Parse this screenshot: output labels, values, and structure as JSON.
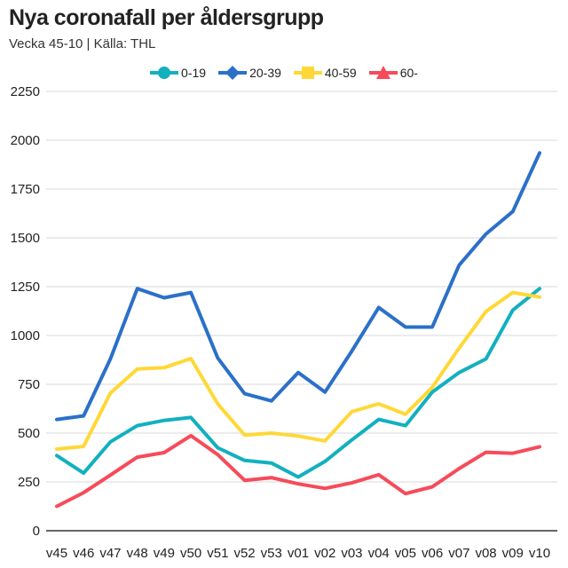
{
  "header": {
    "title": "Nya coronafall per åldersgrupp",
    "subtitle": "Vecka 45-10 | Källa: THL"
  },
  "chart_data": {
    "type": "line",
    "title": "Nya coronafall per åldersgrupp",
    "subtitle": "Vecka 45-10 | Källa: THL",
    "xlabel": "",
    "ylabel": "",
    "ylim": [
      0,
      2250
    ],
    "yticks": [
      0,
      250,
      500,
      750,
      1000,
      1250,
      1500,
      1750,
      2000,
      2250
    ],
    "grid": true,
    "legend_position": "top-center",
    "categories": [
      "v45",
      "v46",
      "v47",
      "v48",
      "v49",
      "v50",
      "v51",
      "v52",
      "v53",
      "v01",
      "v02",
      "v03",
      "v04",
      "v05",
      "v06",
      "v07",
      "v08",
      "v09",
      "v10"
    ],
    "series": [
      {
        "name": "0-19",
        "color": "#12B0BF",
        "marker": "circle",
        "values": [
          385,
          295,
          455,
          538,
          565,
          580,
          425,
          360,
          347,
          275,
          355,
          465,
          570,
          538,
          710,
          810,
          880,
          1130,
          1240
        ]
      },
      {
        "name": "20-39",
        "color": "#2B70C9",
        "marker": "diamond",
        "values": [
          570,
          588,
          880,
          1240,
          1193,
          1220,
          885,
          702,
          665,
          810,
          710,
          920,
          1143,
          1043,
          1043,
          1360,
          1520,
          1635,
          1935
        ]
      },
      {
        "name": "40-59",
        "color": "#FFD837",
        "marker": "square",
        "values": [
          418,
          432,
          705,
          828,
          835,
          882,
          650,
          490,
          500,
          485,
          460,
          610,
          650,
          597,
          735,
          935,
          1123,
          1220,
          1197
        ]
      },
      {
        "name": "60-",
        "color": "#F64B5A",
        "marker": "triangle",
        "values": [
          125,
          195,
          285,
          377,
          400,
          487,
          390,
          258,
          272,
          240,
          217,
          245,
          287,
          190,
          225,
          318,
          402,
          397,
          430
        ]
      }
    ]
  }
}
